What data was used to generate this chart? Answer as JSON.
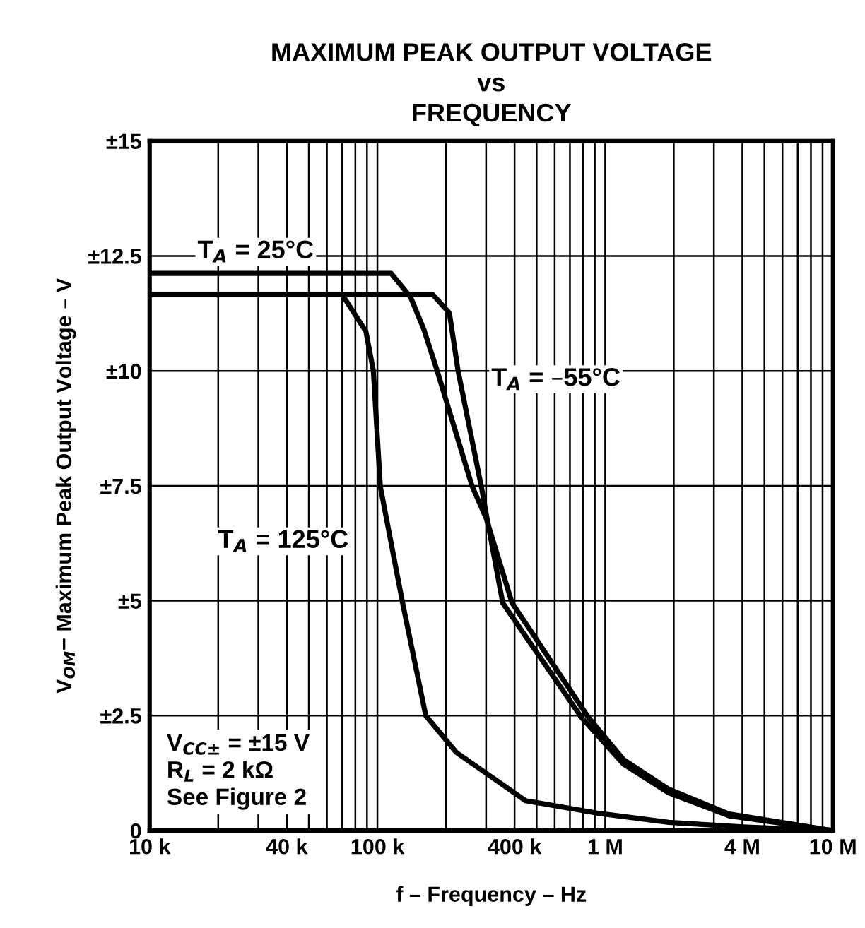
{
  "chart_data": {
    "type": "line",
    "title": "MAXIMUM PEAK OUTPUT VOLTAGE\nvs\nFREQUENCY",
    "xlabel": "f – Frequency – Hz",
    "ylabel": "V$_{OM}$− Maximum Peak Output Voltage – V",
    "log": "x",
    "grid": true,
    "line_style": "solid",
    "marker": "none",
    "xlim": [
      10000,
      10000000
    ],
    "ylim": [
      0,
      15
    ],
    "xticks": [
      {
        "value": 10000,
        "label": "10 k"
      },
      {
        "value": 20000,
        "label": null
      },
      {
        "value": 30000,
        "label": null
      },
      {
        "value": 40000,
        "label": "40 k"
      },
      {
        "value": 50000,
        "label": null
      },
      {
        "value": 60000,
        "label": null
      },
      {
        "value": 70000,
        "label": null
      },
      {
        "value": 80000,
        "label": null
      },
      {
        "value": 90000,
        "label": null
      },
      {
        "value": 100000,
        "label": "100 k"
      },
      {
        "value": 200000,
        "label": null
      },
      {
        "value": 300000,
        "label": null
      },
      {
        "value": 400000,
        "label": "400 k"
      },
      {
        "value": 500000,
        "label": null
      },
      {
        "value": 600000,
        "label": null
      },
      {
        "value": 700000,
        "label": null
      },
      {
        "value": 800000,
        "label": null
      },
      {
        "value": 900000,
        "label": null
      },
      {
        "value": 1000000,
        "label": "1 M"
      },
      {
        "value": 2000000,
        "label": null
      },
      {
        "value": 3000000,
        "label": null
      },
      {
        "value": 4000000,
        "label": "4 M"
      },
      {
        "value": 5000000,
        "label": null
      },
      {
        "value": 6000000,
        "label": null
      },
      {
        "value": 7000000,
        "label": null
      },
      {
        "value": 8000000,
        "label": null
      },
      {
        "value": 9000000,
        "label": null
      },
      {
        "value": 10000000,
        "label": "10 M"
      }
    ],
    "yticks": [
      0,
      {
        "value": 2.5,
        "label": "±2.5"
      },
      {
        "value": 5,
        "label": "±5"
      },
      {
        "value": 7.5,
        "label": "±7.5"
      },
      {
        "value": 10,
        "label": "±10"
      },
      {
        "value": 12.5,
        "label": "±12.5"
      },
      {
        "value": 15,
        "label": "±15"
      }
    ],
    "series": [
      {
        "name": "T$_{A}$ = 25°C",
        "color": "#000000",
        "x": [
          10000,
          115000,
          140000,
          160000,
          183000,
          260000,
          300000,
          390000,
          845000,
          1200000,
          1900000,
          3500000,
          10000000
        ],
        "values": [
          12.12,
          12.12,
          11.6,
          10.9,
          10,
          7.5,
          6.8,
          4.95,
          2.46,
          1.55,
          0.9,
          0.36,
          0
        ]
      },
      {
        "name": "T$_{A}$ = –55°C",
        "color": "#000000",
        "x": [
          10000,
          175000,
          207000,
          226000,
          286000,
          300000,
          355000,
          787000,
          1200000,
          1900000,
          3500000,
          10000000
        ],
        "values": [
          11.66,
          11.66,
          11.26,
          10,
          7.48,
          6.9,
          4.95,
          2.46,
          1.45,
          0.82,
          0.32,
          0
        ]
      },
      {
        "name": "T$_{A}$ = 125°C",
        "color": "#000000",
        "x": [
          10000,
          70000,
          89000,
          96000,
          103000,
          129000,
          163000,
          222000,
          447000,
          950000,
          1900000,
          4000000,
          10000000
        ],
        "values": [
          11.66,
          11.66,
          10.86,
          10,
          7.48,
          4.95,
          2.5,
          1.7,
          0.65,
          0.37,
          0.18,
          0.08,
          0
        ]
      }
    ],
    "annotations": [
      "V$_{CC±}$ = ±15 V\nR$_{L}$ = 2 kΩ\nSee Figure 2"
    ]
  }
}
